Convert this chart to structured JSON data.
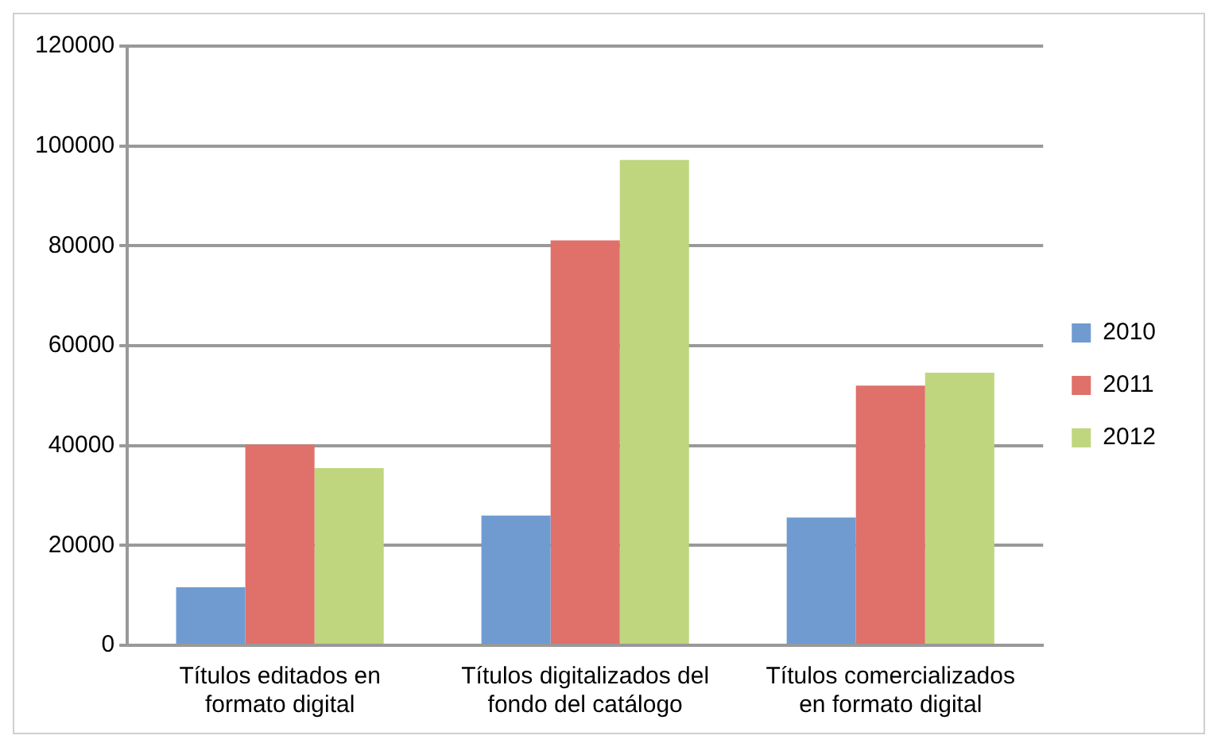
{
  "chart_data": {
    "type": "bar",
    "categories": [
      "Títulos editados en formato digital",
      "Títulos digitalizados del fondo del catálogo",
      "Títulos comercializados en formato digital"
    ],
    "series": [
      {
        "name": "2010",
        "color": "#6f9bd1",
        "values": [
          11600,
          26000,
          25600
        ]
      },
      {
        "name": "2011",
        "color": "#e0706a",
        "values": [
          40200,
          81100,
          52000
        ]
      },
      {
        "name": "2012",
        "color": "#bfd67f",
        "values": [
          35500,
          97200,
          54600
        ]
      }
    ],
    "ylim": [
      0,
      120000
    ],
    "yticks": [
      0,
      20000,
      40000,
      60000,
      80000,
      100000,
      120000
    ],
    "grid": "y",
    "legend": "right"
  }
}
